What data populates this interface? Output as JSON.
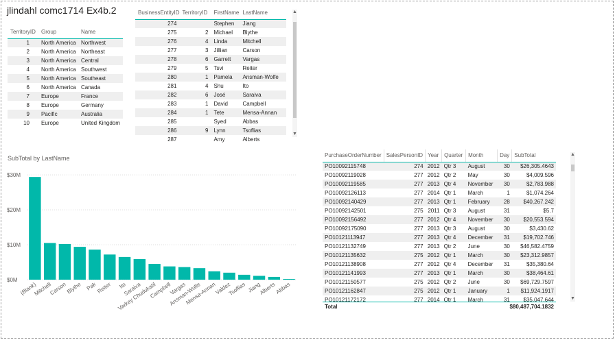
{
  "page": {
    "title": "jlindahl comc1714 Ex4b.2"
  },
  "territory_table": {
    "headers": [
      "TerritoryID",
      "Group",
      "Name"
    ],
    "rows": [
      [
        "1",
        "North America",
        "Northwest"
      ],
      [
        "2",
        "North America",
        "Northeast"
      ],
      [
        "3",
        "North America",
        "Central"
      ],
      [
        "4",
        "North America",
        "Southwest"
      ],
      [
        "5",
        "North America",
        "Southeast"
      ],
      [
        "6",
        "North America",
        "Canada"
      ],
      [
        "7",
        "Europe",
        "France"
      ],
      [
        "8",
        "Europe",
        "Germany"
      ],
      [
        "9",
        "Pacific",
        "Australia"
      ],
      [
        "10",
        "Europe",
        "United Kingdom"
      ]
    ]
  },
  "person_table": {
    "headers": [
      "BusinessEntityID",
      "TerritoryID",
      "FirstName",
      "LastName"
    ],
    "rows": [
      [
        "274",
        "",
        "Stephen",
        "Jiang"
      ],
      [
        "275",
        "2",
        "Michael",
        "Blythe"
      ],
      [
        "276",
        "4",
        "Linda",
        "Mitchell"
      ],
      [
        "277",
        "3",
        "Jillian",
        "Carson"
      ],
      [
        "278",
        "6",
        "Garrett",
        "Vargas"
      ],
      [
        "279",
        "5",
        "Tsvi",
        "Reiter"
      ],
      [
        "280",
        "1",
        "Pamela",
        "Ansman-Wolfe"
      ],
      [
        "281",
        "4",
        "Shu",
        "Ito"
      ],
      [
        "282",
        "6",
        "José",
        "Saraiva"
      ],
      [
        "283",
        "1",
        "David",
        "Campbell"
      ],
      [
        "284",
        "1",
        "Tete",
        "Mensa-Annan"
      ],
      [
        "285",
        "",
        "Syed",
        "Abbas"
      ],
      [
        "286",
        "9",
        "Lynn",
        "Tsoflias"
      ],
      [
        "287",
        "",
        "Amy",
        "Alberts"
      ]
    ]
  },
  "orders_table": {
    "headers": [
      "PurchaseOrderNumber",
      "SalesPersonID",
      "Year",
      "Quarter",
      "Month",
      "Day",
      "SubTotal"
    ],
    "rows": [
      [
        "PO10092115748",
        "274",
        "2012",
        "Qtr 3",
        "August",
        "30",
        "$26,305.4643"
      ],
      [
        "PO10092119028",
        "277",
        "2012",
        "Qtr 2",
        "May",
        "30",
        "$4,009.596"
      ],
      [
        "PO10092119585",
        "277",
        "2013",
        "Qtr 4",
        "November",
        "30",
        "$2,783.988"
      ],
      [
        "PO10092126113",
        "277",
        "2014",
        "Qtr 1",
        "March",
        "1",
        "$1,074.264"
      ],
      [
        "PO10092140429",
        "277",
        "2013",
        "Qtr 1",
        "February",
        "28",
        "$40,267.242"
      ],
      [
        "PO10092142501",
        "275",
        "2011",
        "Qtr 3",
        "August",
        "31",
        "$5.7"
      ],
      [
        "PO10092156492",
        "277",
        "2012",
        "Qtr 4",
        "November",
        "30",
        "$20,553.594"
      ],
      [
        "PO10092175090",
        "277",
        "2013",
        "Qtr 3",
        "August",
        "30",
        "$3,430.62"
      ],
      [
        "PO10121113947",
        "277",
        "2013",
        "Qtr 4",
        "December",
        "31",
        "$19,702.746"
      ],
      [
        "PO10121132749",
        "277",
        "2013",
        "Qtr 2",
        "June",
        "30",
        "$46,582.4759"
      ],
      [
        "PO10121135632",
        "275",
        "2012",
        "Qtr 1",
        "March",
        "30",
        "$23,312.9857"
      ],
      [
        "PO10121138908",
        "277",
        "2012",
        "Qtr 4",
        "December",
        "31",
        "$35,380.64"
      ],
      [
        "PO10121141993",
        "277",
        "2013",
        "Qtr 1",
        "March",
        "30",
        "$38,464.61"
      ],
      [
        "PO10121150577",
        "275",
        "2012",
        "Qtr 2",
        "June",
        "30",
        "$69,729.7597"
      ],
      [
        "PO10121162847",
        "275",
        "2012",
        "Qtr 1",
        "January",
        "1",
        "$11,924.1917"
      ],
      [
        "PO10121172172",
        "277",
        "2014",
        "Qtr 1",
        "March",
        "31",
        "$35,047.644"
      ]
    ],
    "total_label": "Total",
    "total_value": "$80,487,704.1832"
  },
  "chart_data": {
    "type": "bar",
    "title": "SubTotal by LastName",
    "categories": [
      "(Blank)",
      "Mitchell",
      "Carson",
      "Blythe",
      "Pak",
      "Reiter",
      "Ito",
      "Saraiva",
      "Varkey Chudukatil",
      "Campbell",
      "Vargas",
      "Ansman-Wolfe",
      "Mensa-Annan",
      "Valdez",
      "Tsoflias",
      "Jiang",
      "Alberts",
      "Abbas"
    ],
    "values": [
      29.4,
      10.5,
      10.2,
      9.4,
      8.6,
      7.2,
      6.5,
      5.9,
      4.5,
      3.8,
      3.6,
      3.3,
      2.4,
      2.0,
      1.4,
      1.1,
      0.8,
      0.2
    ],
    "ytick_labels": [
      "$0M",
      "$10M",
      "$20M",
      "$30M"
    ],
    "ytick_values": [
      0,
      10,
      20,
      30
    ],
    "ylim": [
      0,
      31
    ],
    "bar_color": "#01b8aa"
  }
}
